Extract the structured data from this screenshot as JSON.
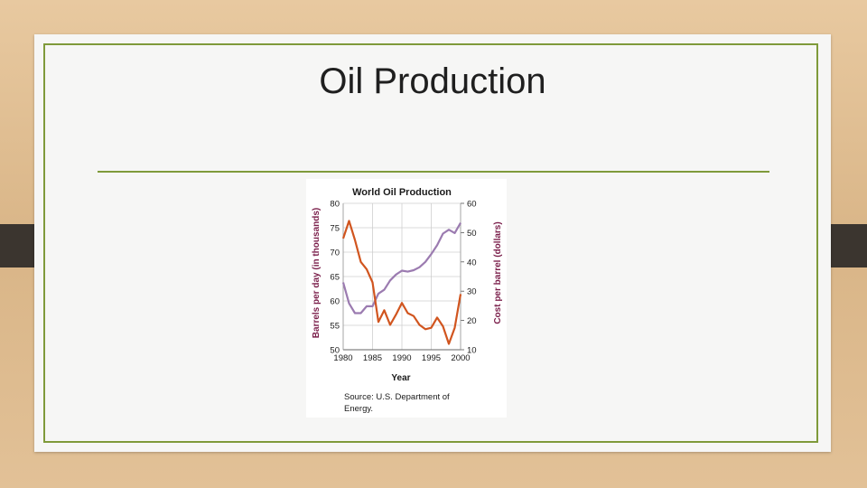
{
  "slide": {
    "title": "Oil Production"
  },
  "chart_data": {
    "type": "line",
    "title": "World Oil Production",
    "xlabel": "Year",
    "ylabel_left": "Barrels per day (in thousands)",
    "ylabel_right": "Cost per barrel (dollars)",
    "xlim": [
      1980,
      2000
    ],
    "ylim_left": [
      50,
      80
    ],
    "ylim_right": [
      10,
      60
    ],
    "x_ticks": [
      "1980",
      "1985",
      "1990",
      "1995",
      "2000"
    ],
    "y_ticks_left": [
      "50",
      "55",
      "60",
      "65",
      "70",
      "75",
      "80"
    ],
    "y_ticks_right": [
      "10",
      "20",
      "30",
      "40",
      "50",
      "60"
    ],
    "grid": true,
    "colors": {
      "production": "#9b7bb0",
      "cost": "#d1551f",
      "axis_label": "#7a1e4a"
    },
    "series": [
      {
        "key": "production",
        "axis": "left",
        "x": [
          1980,
          1981,
          1982,
          1983,
          1984,
          1985,
          1986,
          1987,
          1988,
          1989,
          1990,
          1991,
          1992,
          1993,
          1994,
          1995,
          1996,
          1997,
          1998,
          1999,
          2000
        ],
        "values": [
          63.8,
          59.5,
          57.5,
          57.5,
          58.9,
          58.9,
          61.5,
          62.3,
          64.2,
          65.4,
          66.2,
          66.0,
          66.3,
          66.9,
          68.0,
          69.6,
          71.4,
          73.8,
          74.6,
          73.9,
          76.0
        ]
      },
      {
        "key": "cost",
        "axis": "right",
        "x": [
          1980,
          1981,
          1982,
          1983,
          1984,
          1985,
          1986,
          1987,
          1988,
          1989,
          1990,
          1991,
          1992,
          1993,
          1994,
          1995,
          1996,
          1997,
          1998,
          1999,
          2000
        ],
        "values": [
          48.0,
          54.0,
          47.5,
          40.0,
          37.5,
          33.0,
          19.5,
          23.5,
          18.5,
          22.0,
          26.0,
          22.5,
          21.5,
          18.5,
          17.0,
          17.5,
          21.0,
          18.0,
          12.0,
          17.5,
          29.0
        ]
      }
    ],
    "source": "Source: U.S. Department of Energy."
  }
}
